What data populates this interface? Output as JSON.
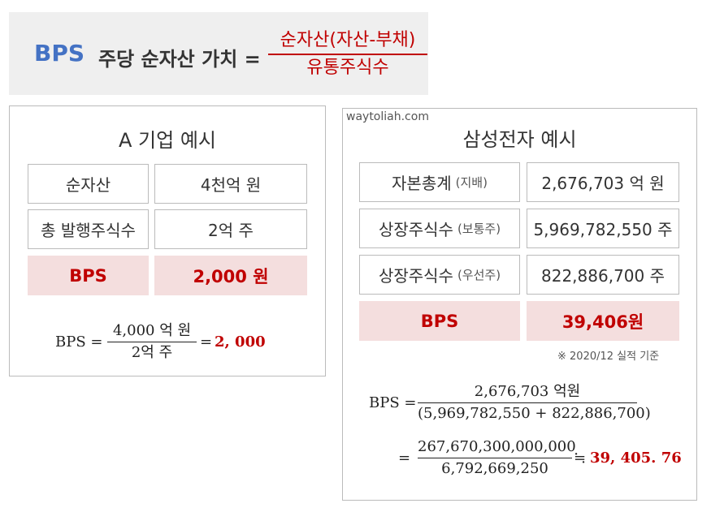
{
  "header": {
    "bps": "BPS",
    "title": "주당 순자산 가치 =",
    "numerator": "순자산(자산-부채)",
    "denominator": "유통주식수"
  },
  "panel_a": {
    "title": "A 기업 예시",
    "rows": [
      {
        "label": "순자산",
        "value": "4천억 원"
      },
      {
        "label": "총 발행주식수",
        "value": "2억 주"
      }
    ],
    "bps_label": "BPS",
    "bps_value": "2,000 원",
    "formula": {
      "lhs": "BPS =",
      "numerator": "4,000 억 원",
      "denominator": "2억 주",
      "equals": "=",
      "result": "2, 000"
    }
  },
  "panel_b": {
    "watermark": "waytoliah.com",
    "title": "삼성전자 예시",
    "rows": [
      {
        "label": "자본총계",
        "sub": "(지배)",
        "value": "2,676,703 억 원"
      },
      {
        "label": "상장주식수",
        "sub": "(보통주)",
        "value": "5,969,782,550 주"
      },
      {
        "label": "상장주식수",
        "sub": "(우선주)",
        "value": "822,886,700 주"
      }
    ],
    "bps_label": "BPS",
    "bps_value": "39,406원",
    "note": "※ 2020/12 실적 기준",
    "formula1": {
      "lhs": "BPS =",
      "numerator": "2,676,703 억원",
      "denominator": "(5,969,782,550 + 822,886,700)"
    },
    "formula2": {
      "lhs": "=",
      "numerator": "267,670,300,000,000",
      "denominator": "6,792,669,250",
      "approx": "≒",
      "result": "39, 405. 76"
    }
  },
  "colors": {
    "accent_blue": "#4472c4",
    "accent_red": "#c00000",
    "highlight_bg": "#f4dede",
    "header_bg": "#efefef"
  }
}
